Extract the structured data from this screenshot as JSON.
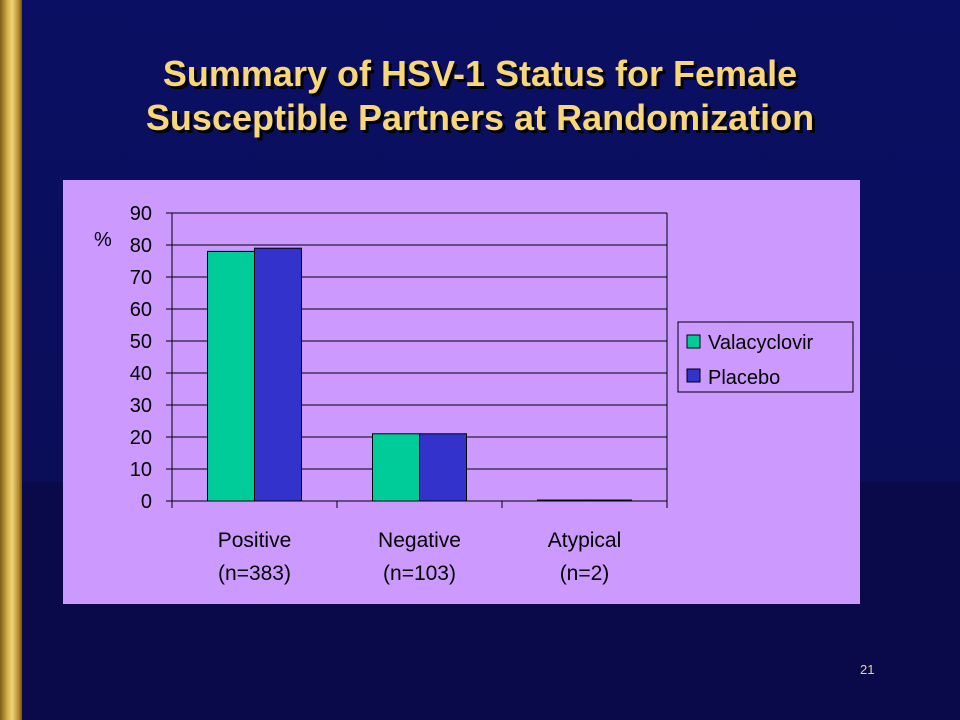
{
  "slide": {
    "title_line1": "Summary of HSV-1 Status for Female",
    "title_line2": "Susceptible Partners at Randomization",
    "page_number": "21"
  },
  "colors": {
    "background": "#0b0f63",
    "title": "#f7d77a",
    "panel": "#cc99ff",
    "valacyclovir": "#00cc99",
    "placebo": "#3333cc"
  },
  "chart_data": {
    "type": "bar",
    "ylabel": "%",
    "ylim": [
      0,
      90
    ],
    "yticks": [
      0,
      10,
      20,
      30,
      40,
      50,
      60,
      70,
      80,
      90
    ],
    "grid": true,
    "legend_position": "right",
    "categories": [
      {
        "name": "Positive",
        "n": "(n=383)"
      },
      {
        "name": "Negative",
        "n": "(n=103)"
      },
      {
        "name": "Atypical",
        "n": "(n=2)"
      }
    ],
    "series": [
      {
        "name": "Valacyclovir",
        "values": [
          78,
          21,
          0.3
        ]
      },
      {
        "name": "Placebo",
        "values": [
          79,
          21,
          0.3
        ]
      }
    ]
  }
}
